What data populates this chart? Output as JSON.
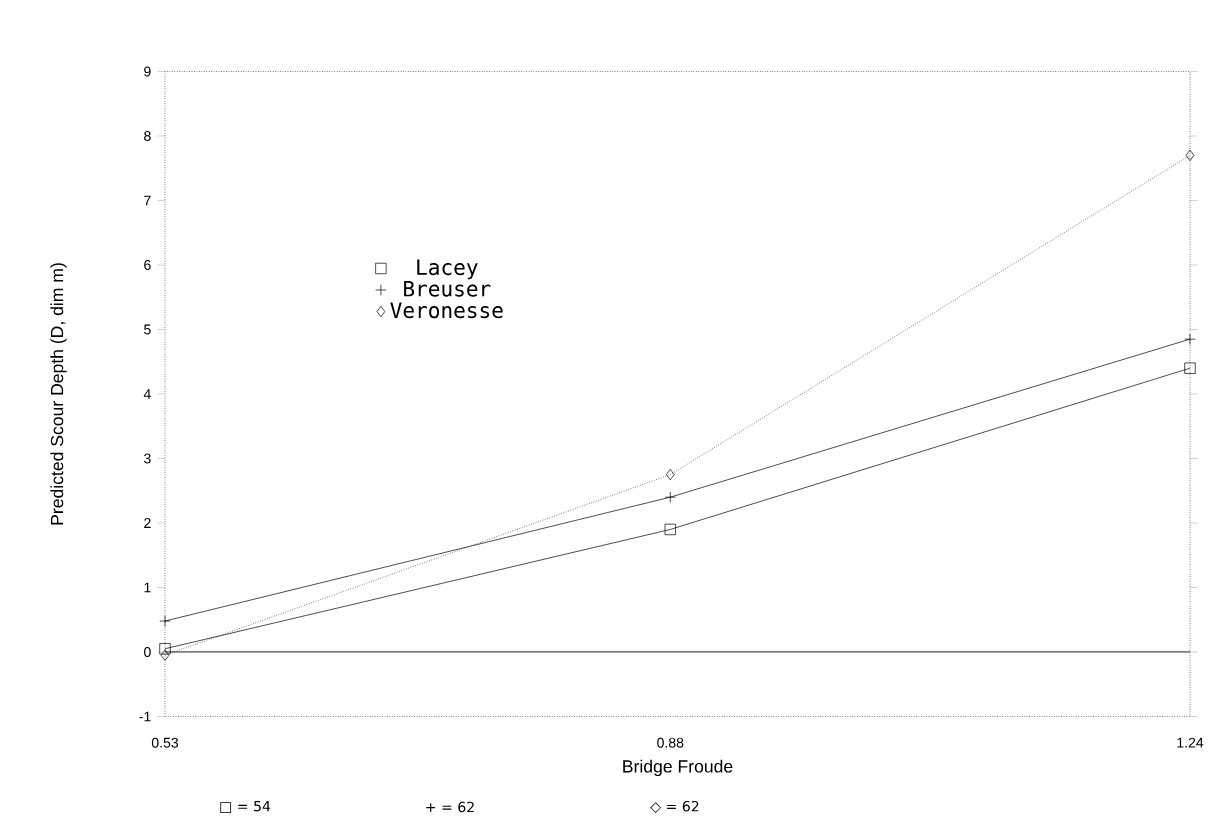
{
  "chart_data": {
    "type": "line",
    "xlabel": "Bridge Froude",
    "ylabel": "Predicted Scour Depth (D, dim m)",
    "x": [
      0.53,
      0.88,
      1.24
    ],
    "xlim": [
      0.53,
      1.24
    ],
    "xticks": [
      0.53,
      0.88,
      1.24
    ],
    "ylim": [
      -1,
      9
    ],
    "yticks": [
      -1,
      0,
      1,
      2,
      3,
      4,
      5,
      6,
      7,
      8,
      9
    ],
    "series": [
      {
        "name": "Lacey",
        "color": "#000000",
        "marker": "square",
        "line_style": "solid",
        "values": [
          0.05,
          1.9,
          4.4
        ]
      },
      {
        "name": "Breuser",
        "color": "#000000",
        "marker": "cross",
        "line_style": "solid",
        "values": [
          0.48,
          2.4,
          4.85
        ]
      },
      {
        "name": "Veronesse",
        "color": "#000000",
        "marker": "diamond",
        "line_style": "dotted",
        "values": [
          -0.05,
          2.75,
          7.7
        ]
      }
    ],
    "ref_lines": [
      {
        "axis": "y",
        "value": 0
      }
    ],
    "legend": "left",
    "annotations": [
      "□ = 54",
      "+ = 62",
      "◇ = 62"
    ]
  }
}
